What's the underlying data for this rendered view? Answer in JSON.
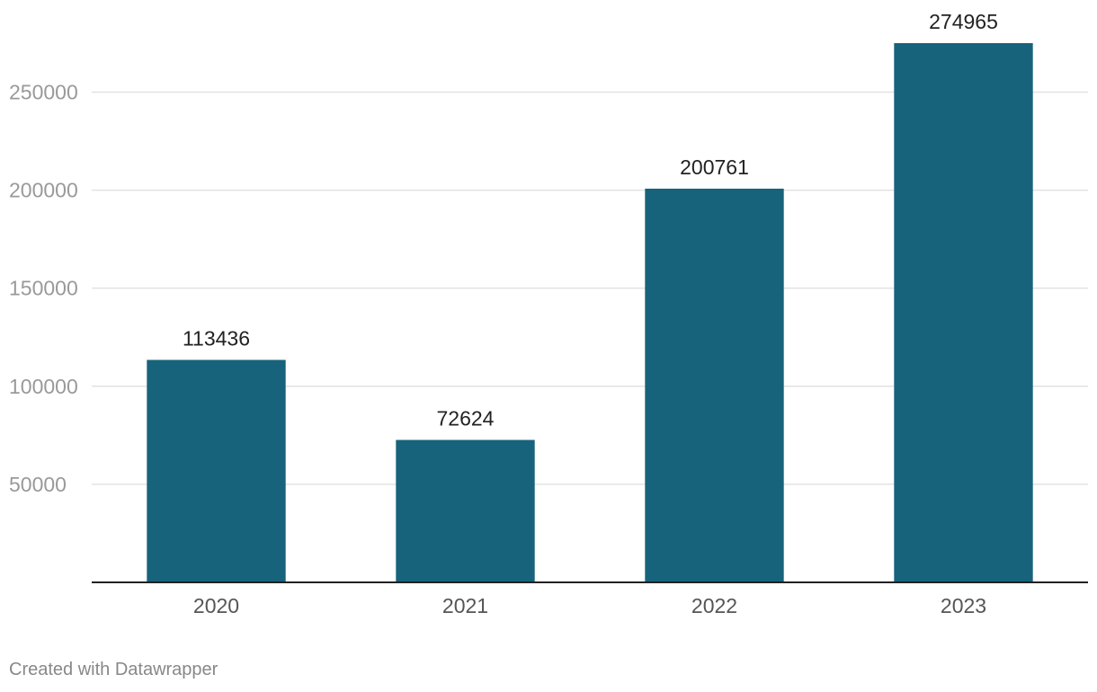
{
  "chart_data": {
    "type": "bar",
    "title": "",
    "xlabel": "",
    "ylabel": "",
    "categories": [
      "2020",
      "2021",
      "2022",
      "2023"
    ],
    "values": [
      113436,
      72624,
      200761,
      274965
    ],
    "value_labels": [
      "113436",
      "72624",
      "200761",
      "274965"
    ],
    "ylim": [
      0,
      274965
    ],
    "yticks": [
      50000,
      100000,
      150000,
      200000,
      250000
    ],
    "ytick_labels": [
      "50000",
      "100000",
      "150000",
      "200000",
      "250000"
    ],
    "grid": true,
    "bar_color": "#17637b"
  },
  "footer": {
    "credit": "Created with Datawrapper"
  }
}
